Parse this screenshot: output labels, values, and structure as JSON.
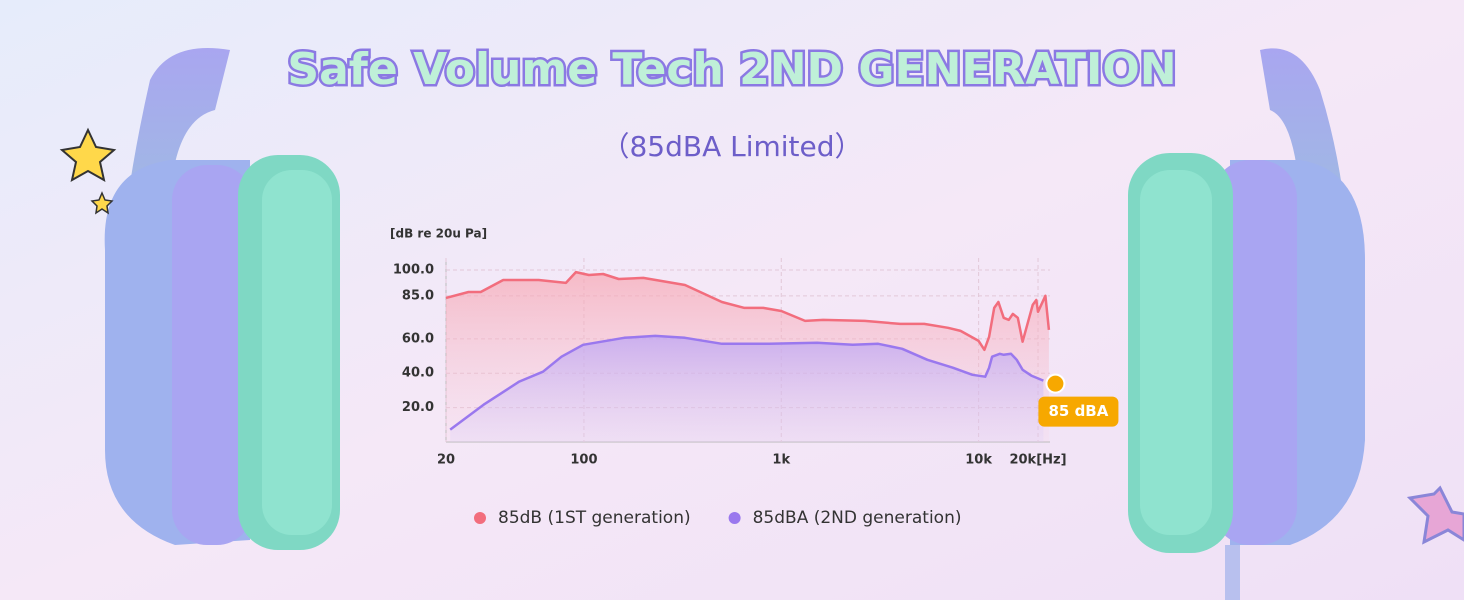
{
  "chart_data": {
    "type": "line",
    "title": "Safe Volume Tech 2ND GENERATION",
    "subtitle": "（85dBA Limited）",
    "ylabel": "[dB re 20u Pa]",
    "xscale": "log",
    "xlim": [
      20,
      23000
    ],
    "ylim": [
      0,
      107
    ],
    "xticks": [
      20,
      100,
      {
        "value": 1000,
        "label": "1k"
      },
      {
        "value": 10000,
        "label": "10k"
      },
      {
        "value": 20000,
        "label": "20k[Hz]"
      }
    ],
    "yticks": [
      {
        "value": 20,
        "label": "20.0"
      },
      {
        "value": 40,
        "label": "40.0"
      },
      {
        "value": 60,
        "label": "60.0"
      },
      {
        "value": 85,
        "label": "85.0"
      },
      {
        "value": 100,
        "label": "100.0"
      }
    ],
    "grid": true,
    "annotation": "85 dBA",
    "series": [
      {
        "name": "85dB (1ST generation)",
        "color": "#f26d7d",
        "x": [
          20,
          26,
          30,
          39,
          59,
          81,
          91,
          106,
          125,
          150,
          200,
          325,
          500,
          650,
          810,
          1000,
          1320,
          1630,
          2650,
          4000,
          5300,
          7000,
          8100,
          10000,
          10700,
          11300,
          12000,
          12600,
          13400,
          14200,
          14900,
          15800,
          16700,
          18800,
          19600,
          20000,
          21800,
          22700
        ],
        "values": [
          83.8,
          87.2,
          87.2,
          94.2,
          94.2,
          92.5,
          98.8,
          97.1,
          97.7,
          94.8,
          95.4,
          91.3,
          81.4,
          78,
          78,
          76.2,
          70.4,
          71,
          70.4,
          68.7,
          68.7,
          66.4,
          64.6,
          58.8,
          53.6,
          61.2,
          78,
          81.4,
          72.2,
          71,
          74.5,
          72.2,
          58.3,
          79.7,
          82.6,
          75.7,
          85,
          65.2
        ]
      },
      {
        "name": "85dBA (2ND generation)",
        "color": "#9a78ee",
        "x": [
          21,
          31,
          47,
          62,
          77,
          99,
          160,
          230,
          325,
          500,
          870,
          1520,
          2300,
          3100,
          4100,
          5500,
          7400,
          9300,
          10800,
          11300,
          11700,
          12800,
          13400,
          14600,
          15600,
          16700,
          18500,
          21300
        ],
        "values": [
          7.2,
          21.7,
          35.1,
          40.9,
          49.6,
          56.5,
          60.6,
          61.7,
          60.6,
          57.1,
          57.1,
          57.7,
          56.5,
          57.1,
          54.2,
          47.8,
          43.2,
          39.1,
          38,
          43.2,
          49.6,
          51.3,
          50.7,
          51.3,
          47.8,
          42,
          38.6,
          35.7
        ]
      }
    ]
  }
}
